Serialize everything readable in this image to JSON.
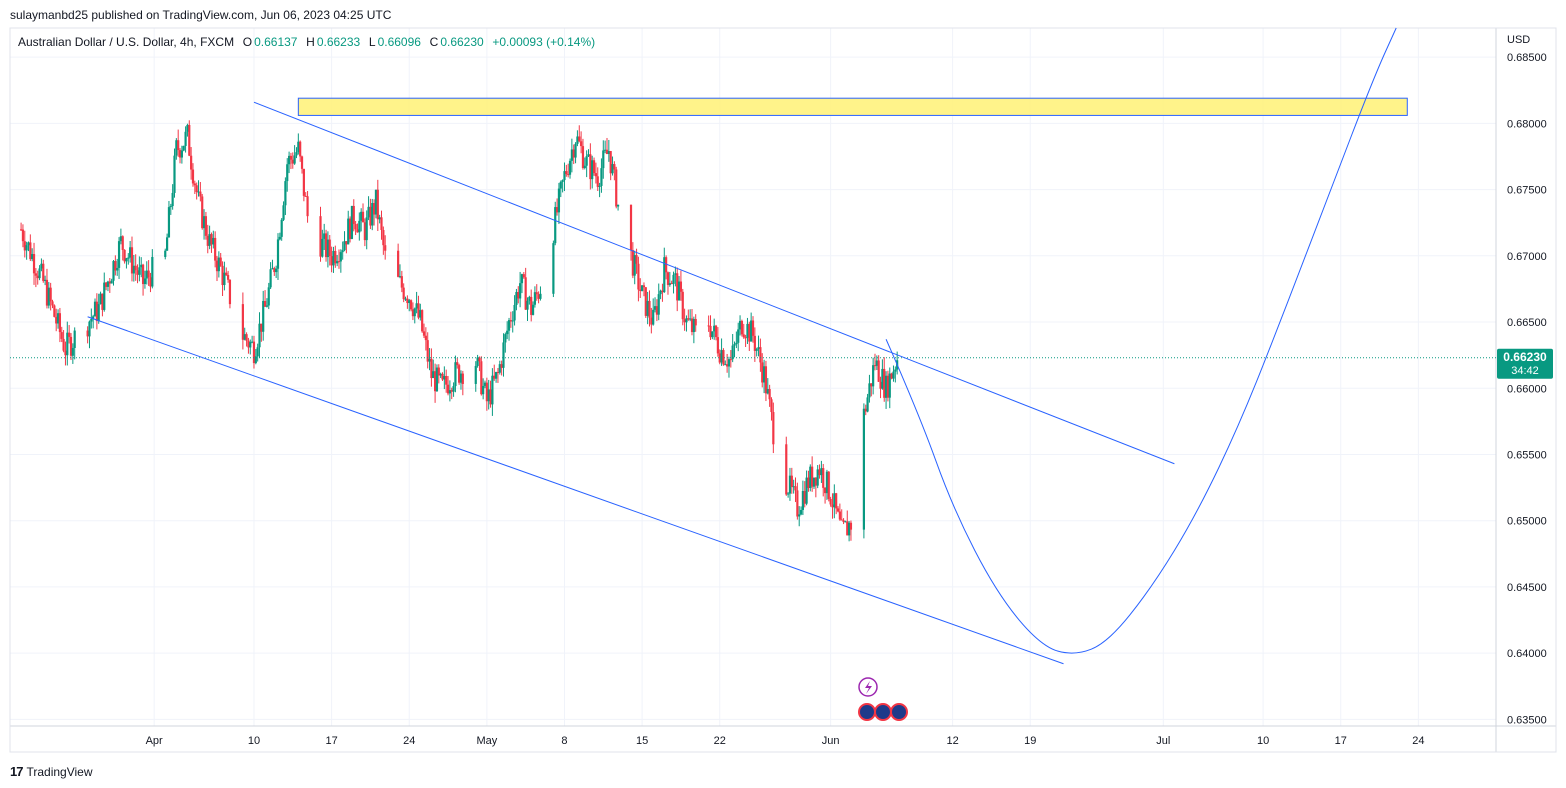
{
  "header": {
    "published": "sulaymanbd25 published on TradingView.com, Jun 06, 2023 04:25 UTC",
    "symbol": "Australian Dollar / U.S. Dollar, 4h, FXCM",
    "open_label": "O",
    "open": "0.66137",
    "high_label": "H",
    "high": "0.66233",
    "low_label": "L",
    "low": "0.66096",
    "close_label": "C",
    "close": "0.66230",
    "change": "+0.00093 (+0.14%)"
  },
  "currency": "USD",
  "price_tag": {
    "price": "0.66230",
    "countdown": "34:42"
  },
  "brand": {
    "logo": "17",
    "name": "TradingView"
  },
  "colors": {
    "up": "#089981",
    "down": "#f23645",
    "line": "#2962ff",
    "zone_fill": "#fff176",
    "zone_stroke": "#2962ff",
    "price_tag": "#089981"
  },
  "chart_data": {
    "type": "candlestick",
    "ylim": [
      0.6345,
      0.6872
    ],
    "y_ticks": [
      "0.68500",
      "0.68000",
      "0.67500",
      "0.67000",
      "0.66500",
      "0.66000",
      "0.65500",
      "0.65000",
      "0.64500",
      "0.64000",
      "0.63500"
    ],
    "y_tick_values": [
      0.685,
      0.68,
      0.675,
      0.67,
      0.665,
      0.66,
      0.655,
      0.65,
      0.645,
      0.64,
      0.635
    ],
    "x_ticks": [
      "Apr",
      "10",
      "17",
      "24",
      "May",
      "8",
      "15",
      "22",
      "Jun",
      "12",
      "19",
      "Jul",
      "10",
      "17",
      "24"
    ],
    "x_tick_dates": [
      "2023-04-01",
      "2023-04-10",
      "2023-04-17",
      "2023-04-24",
      "2023-05-01",
      "2023-05-08",
      "2023-05-15",
      "2023-05-22",
      "2023-06-01",
      "2023-06-12",
      "2023-06-19",
      "2023-07-01",
      "2023-07-10",
      "2023-07-17",
      "2023-07-24"
    ],
    "current_price": 0.6623,
    "close_path": [
      [
        "2023-03-20",
        0.672
      ],
      [
        "2023-03-22",
        0.668
      ],
      [
        "2023-03-24",
        0.663
      ],
      [
        "2023-03-27",
        0.666
      ],
      [
        "2023-03-29",
        0.671
      ],
      [
        "2023-03-31",
        0.668
      ],
      [
        "2023-04-02",
        0.67
      ],
      [
        "2023-04-03",
        0.678
      ],
      [
        "2023-04-04",
        0.679
      ],
      [
        "2023-04-05",
        0.674
      ],
      [
        "2023-04-06",
        0.671
      ],
      [
        "2023-04-07",
        0.669
      ],
      [
        "2023-04-09",
        0.664
      ],
      [
        "2023-04-10",
        0.663
      ],
      [
        "2023-04-11",
        0.666
      ],
      [
        "2023-04-12",
        0.67
      ],
      [
        "2023-04-13",
        0.677
      ],
      [
        "2023-04-14",
        0.678
      ],
      [
        "2023-04-15",
        0.672
      ],
      [
        "2023-04-17",
        0.67
      ],
      [
        "2023-04-18",
        0.671
      ],
      [
        "2023-04-19",
        0.673
      ],
      [
        "2023-04-20",
        0.672
      ],
      [
        "2023-04-21",
        0.674
      ],
      [
        "2023-04-22",
        0.669
      ],
      [
        "2023-04-24",
        0.667
      ],
      [
        "2023-04-25",
        0.665
      ],
      [
        "2023-04-26",
        0.661
      ],
      [
        "2023-04-27",
        0.66
      ],
      [
        "2023-04-28",
        0.661
      ],
      [
        "2023-04-30",
        0.662
      ],
      [
        "2023-05-01",
        0.659
      ],
      [
        "2023-05-02",
        0.661
      ],
      [
        "2023-05-03",
        0.665
      ],
      [
        "2023-05-04",
        0.668
      ],
      [
        "2023-05-05",
        0.666
      ],
      [
        "2023-05-06",
        0.668
      ],
      [
        "2023-05-07",
        0.672
      ],
      [
        "2023-05-08",
        0.676
      ],
      [
        "2023-05-09",
        0.679
      ],
      [
        "2023-05-10",
        0.677
      ],
      [
        "2023-05-11",
        0.676
      ],
      [
        "2023-05-12",
        0.678
      ],
      [
        "2023-05-13",
        0.673
      ],
      [
        "2023-05-14",
        0.67
      ],
      [
        "2023-05-15",
        0.667
      ],
      [
        "2023-05-16",
        0.665
      ],
      [
        "2023-05-17",
        0.669
      ],
      [
        "2023-05-18",
        0.668
      ],
      [
        "2023-05-19",
        0.665
      ],
      [
        "2023-05-20",
        0.664
      ],
      [
        "2023-05-21",
        0.665
      ],
      [
        "2023-05-22",
        0.663
      ],
      [
        "2023-05-23",
        0.662
      ],
      [
        "2023-05-24",
        0.665
      ],
      [
        "2023-05-25",
        0.664
      ],
      [
        "2023-05-26",
        0.661
      ],
      [
        "2023-05-27",
        0.656
      ],
      [
        "2023-05-28",
        0.653
      ],
      [
        "2023-05-29",
        0.651
      ],
      [
        "2023-05-30",
        0.653
      ],
      [
        "2023-05-31",
        0.654
      ],
      [
        "2023-06-01",
        0.652
      ],
      [
        "2023-06-02",
        0.649
      ],
      [
        "2023-06-03",
        0.65
      ],
      [
        "2023-06-04",
        0.658
      ],
      [
        "2023-06-05",
        0.662
      ],
      [
        "2023-06-06",
        0.66
      ],
      [
        "2023-06-07",
        0.6623
      ]
    ],
    "drawings": {
      "resistance_zone": {
        "from": "2023-04-14",
        "to": "2023-07-23",
        "price_low": 0.6806,
        "price_high": 0.6819
      },
      "upper_trendline": {
        "start": [
          "2023-04-10",
          0.6816
        ],
        "end": [
          "2023-07-02",
          0.6543
        ]
      },
      "lower_trendline": {
        "start": [
          "2023-03-26",
          0.6654
        ],
        "end": [
          "2023-06-22",
          0.6392
        ]
      },
      "projection_curve": [
        [
          "2023-06-06",
          0.6637
        ],
        [
          "2023-06-09",
          0.658
        ],
        [
          "2023-06-12",
          0.651
        ],
        [
          "2023-06-16",
          0.6445
        ],
        [
          "2023-06-20",
          0.6405
        ],
        [
          "2023-06-23",
          0.6398
        ],
        [
          "2023-06-26",
          0.6408
        ],
        [
          "2023-06-30",
          0.645
        ],
        [
          "2023-07-04",
          0.6505
        ],
        [
          "2023-07-08",
          0.6575
        ],
        [
          "2023-07-12",
          0.666
        ],
        [
          "2023-07-16",
          0.6748
        ],
        [
          "2023-07-20",
          0.6835
        ],
        [
          "2023-07-22",
          0.6872
        ]
      ]
    }
  }
}
